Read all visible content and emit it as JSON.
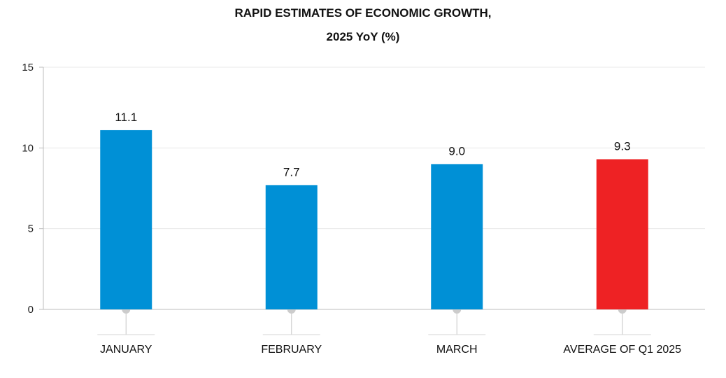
{
  "chart_data": {
    "type": "bar",
    "title": "RAPID ESTIMATES OF ECONOMIC GROWTH,",
    "subtitle": "2025 YoY (%)",
    "xlabel": "",
    "ylabel": "",
    "categories": [
      "JANUARY",
      "FEBRUARY",
      "MARCH",
      "AVERAGE OF Q1 2025"
    ],
    "values": [
      11.1,
      7.7,
      9.0,
      9.3
    ],
    "value_labels": [
      "11.1",
      "7.7",
      "9.0",
      "9.3"
    ],
    "colors": [
      "#0090d6",
      "#0090d6",
      "#0090d6",
      "#ee2224"
    ],
    "ylim": [
      0,
      15
    ],
    "yticks": [
      0,
      5,
      10,
      15
    ],
    "grid": true,
    "legend": "none"
  }
}
